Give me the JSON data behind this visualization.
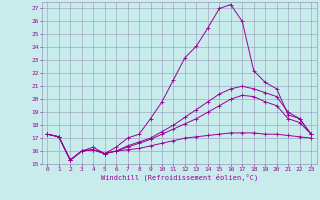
{
  "xlabel": "Windchill (Refroidissement éolien,°C)",
  "bg_color": "#c8ecec",
  "grid_color": "#9999bb",
  "line_color": "#990099",
  "xlim": [
    -0.5,
    23.5
  ],
  "ylim": [
    15,
    27.5
  ],
  "xticks": [
    0,
    1,
    2,
    3,
    4,
    5,
    6,
    7,
    8,
    9,
    10,
    11,
    12,
    13,
    14,
    15,
    16,
    17,
    18,
    19,
    20,
    21,
    22,
    23
  ],
  "yticks": [
    15,
    16,
    17,
    18,
    19,
    20,
    21,
    22,
    23,
    24,
    25,
    26,
    27
  ],
  "line1_x": [
    0,
    1,
    2,
    3,
    4,
    5,
    6,
    7,
    8,
    9,
    10,
    11,
    12,
    13,
    14,
    15,
    16,
    17,
    18,
    19,
    20,
    21,
    22,
    23
  ],
  "line1_y": [
    17.3,
    17.1,
    15.3,
    16.0,
    16.3,
    15.8,
    16.3,
    17.0,
    17.3,
    18.5,
    19.8,
    21.5,
    23.2,
    24.1,
    25.5,
    27.0,
    27.3,
    26.0,
    22.2,
    21.3,
    20.8,
    18.8,
    18.5,
    17.3
  ],
  "line2_x": [
    0,
    1,
    2,
    3,
    4,
    5,
    6,
    7,
    8,
    9,
    10,
    11,
    12,
    13,
    14,
    15,
    16,
    17,
    18,
    19,
    20,
    21,
    22,
    23
  ],
  "line2_y": [
    17.3,
    17.1,
    15.3,
    16.0,
    16.1,
    15.8,
    16.0,
    16.4,
    16.7,
    17.0,
    17.5,
    18.0,
    18.6,
    19.2,
    19.8,
    20.4,
    20.8,
    21.0,
    20.8,
    20.5,
    20.2,
    19.0,
    18.5,
    17.3
  ],
  "line3_x": [
    0,
    1,
    2,
    3,
    4,
    5,
    6,
    7,
    8,
    9,
    10,
    11,
    12,
    13,
    14,
    15,
    16,
    17,
    18,
    19,
    20,
    21,
    22,
    23
  ],
  "line3_y": [
    17.3,
    17.1,
    15.3,
    16.0,
    16.1,
    15.8,
    16.0,
    16.3,
    16.6,
    16.9,
    17.3,
    17.7,
    18.1,
    18.5,
    19.0,
    19.5,
    20.0,
    20.3,
    20.2,
    19.8,
    19.5,
    18.5,
    18.2,
    17.3
  ],
  "line4_x": [
    0,
    1,
    2,
    3,
    4,
    5,
    6,
    7,
    8,
    9,
    10,
    11,
    12,
    13,
    14,
    15,
    16,
    17,
    18,
    19,
    20,
    21,
    22,
    23
  ],
  "line4_y": [
    17.3,
    17.1,
    15.3,
    16.0,
    16.1,
    15.8,
    16.0,
    16.1,
    16.2,
    16.4,
    16.6,
    16.8,
    17.0,
    17.1,
    17.2,
    17.3,
    17.4,
    17.4,
    17.4,
    17.3,
    17.3,
    17.2,
    17.1,
    17.0
  ]
}
